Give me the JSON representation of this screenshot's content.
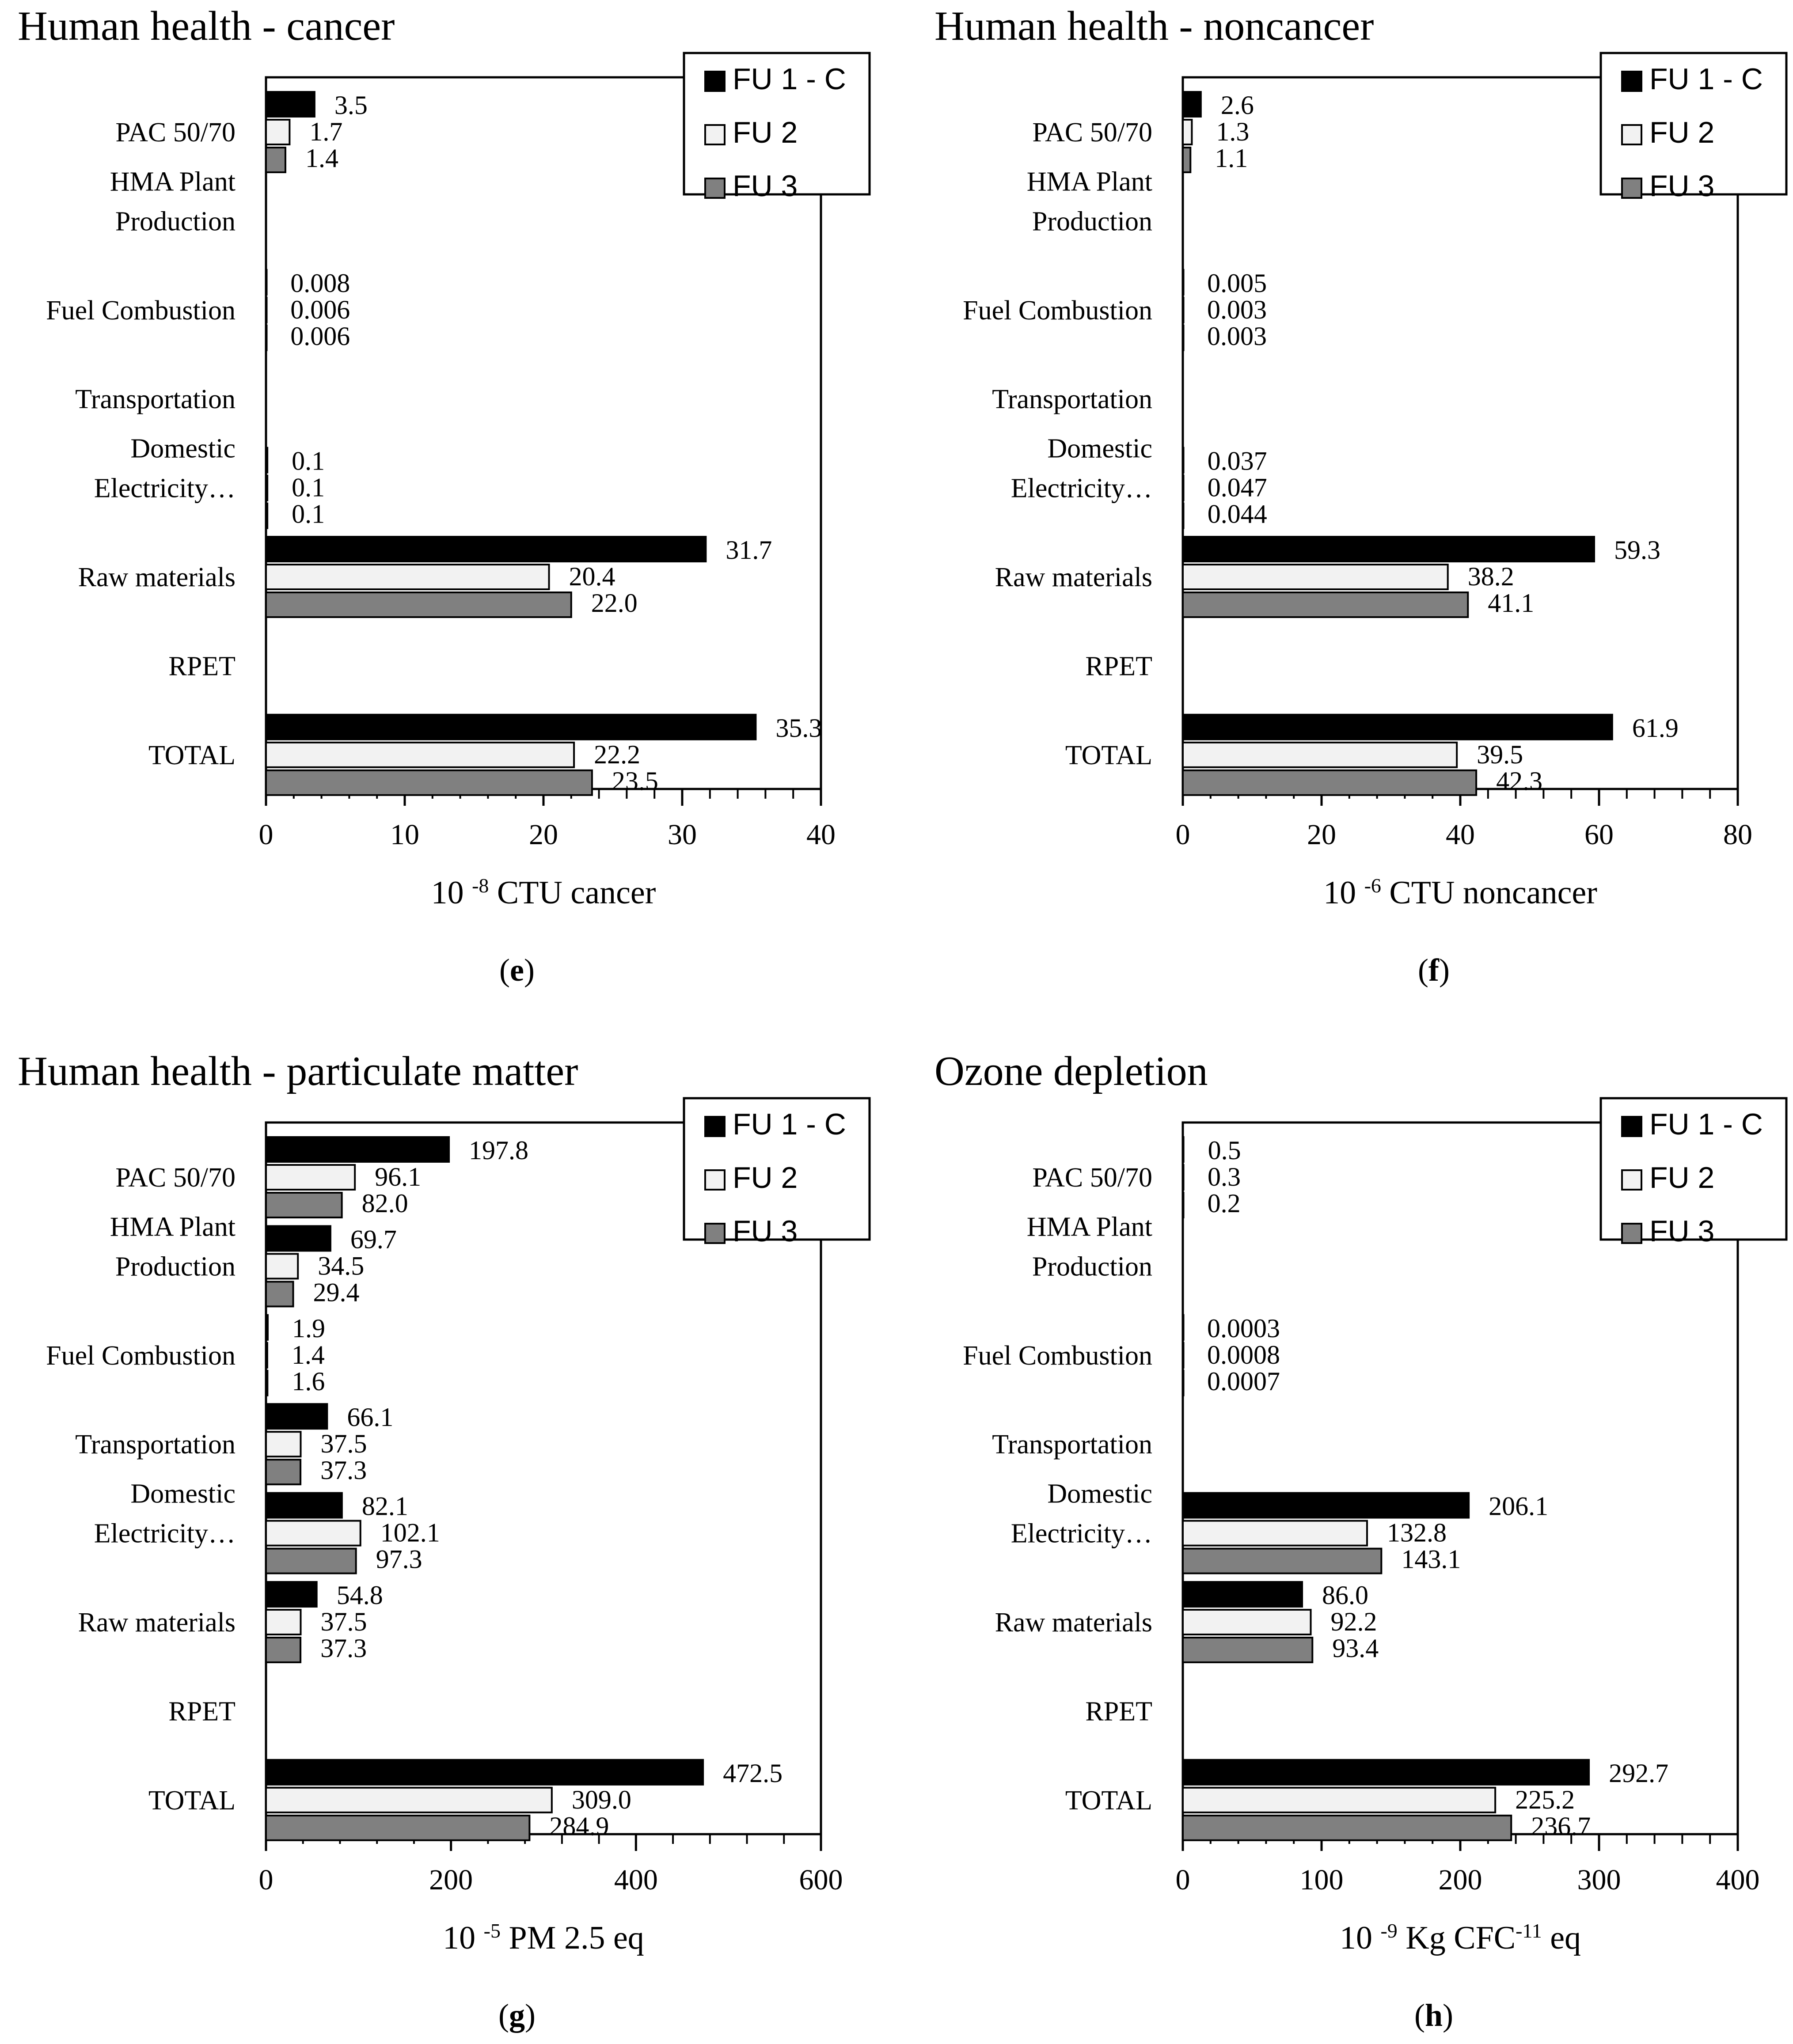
{
  "legend_labels": [
    "FU 1 - C",
    "FU 2",
    "FU 3"
  ],
  "series_colors": [
    "#000000",
    "#f2f2f2",
    "#808080"
  ],
  "chart_data": [
    {
      "type": "bar",
      "panel": "e",
      "panel_label": "e",
      "title": "Human health - cancer",
      "xlabel": {
        "prefix": "10 ",
        "sup": "-8",
        "suffix": " CTU cancer"
      },
      "xlim": [
        0,
        40
      ],
      "major_ticks": [
        0,
        10,
        20,
        30,
        40
      ],
      "minor_step": 2,
      "categories": [
        "PAC 50/70",
        "HMA Plant Production",
        "Fuel Combustion",
        "Transportation",
        "Domestic Electricity…",
        "Raw materials",
        "RPET",
        "TOTAL"
      ],
      "category_lines": [
        [
          "PAC 50/70"
        ],
        [
          "HMA Plant",
          "Production"
        ],
        [
          "Fuel Combustion"
        ],
        [
          "Transportation"
        ],
        [
          "Domestic",
          "Electricity…"
        ],
        [
          "Raw materials"
        ],
        [
          "RPET"
        ],
        [
          "TOTAL"
        ]
      ],
      "series": [
        {
          "name": "FU 1 - C",
          "values": [
            3.5,
            null,
            0.008,
            null,
            0.1,
            31.7,
            null,
            35.3
          ],
          "labels": [
            "3.5",
            "",
            "0.008",
            "",
            "0.1",
            "31.7",
            "",
            "35.3"
          ]
        },
        {
          "name": "FU 2",
          "values": [
            1.7,
            null,
            0.006,
            null,
            0.1,
            20.4,
            null,
            22.2
          ],
          "labels": [
            "1.7",
            "",
            "0.006",
            "",
            "0.1",
            "20.4",
            "",
            "22.2"
          ]
        },
        {
          "name": "FU 3",
          "values": [
            1.4,
            null,
            0.006,
            null,
            0.1,
            22.0,
            null,
            23.5
          ],
          "labels": [
            "1.4",
            "",
            "0.006",
            "",
            "0.1",
            "22.0",
            "",
            "23.5"
          ]
        }
      ],
      "legend": "top-right"
    },
    {
      "type": "bar",
      "panel": "f",
      "panel_label": "f",
      "title": "Human health - noncancer",
      "xlabel": {
        "prefix": "10 ",
        "sup": "-6",
        "suffix": " CTU noncancer"
      },
      "xlim": [
        0,
        80
      ],
      "major_ticks": [
        0,
        20,
        40,
        60,
        80
      ],
      "minor_step": 4,
      "categories": [
        "PAC 50/70",
        "HMA Plant Production",
        "Fuel Combustion",
        "Transportation",
        "Domestic Electricity…",
        "Raw materials",
        "RPET",
        "TOTAL"
      ],
      "category_lines": [
        [
          "PAC 50/70"
        ],
        [
          "HMA Plant",
          "Production"
        ],
        [
          "Fuel Combustion"
        ],
        [
          "Transportation"
        ],
        [
          "Domestic",
          "Electricity…"
        ],
        [
          "Raw materials"
        ],
        [
          "RPET"
        ],
        [
          "TOTAL"
        ]
      ],
      "series": [
        {
          "name": "FU 1 - C",
          "values": [
            2.6,
            null,
            0.005,
            null,
            0.037,
            59.3,
            null,
            61.9
          ],
          "labels": [
            "2.6",
            "",
            "0.005",
            "",
            "0.037",
            "59.3",
            "",
            "61.9"
          ]
        },
        {
          "name": "FU 2",
          "values": [
            1.3,
            null,
            0.003,
            null,
            0.047,
            38.2,
            null,
            39.5
          ],
          "labels": [
            "1.3",
            "",
            "0.003",
            "",
            "0.047",
            "38.2",
            "",
            "39.5"
          ]
        },
        {
          "name": "FU 3",
          "values": [
            1.1,
            null,
            0.003,
            null,
            0.044,
            41.1,
            null,
            42.3
          ],
          "labels": [
            "1.1",
            "",
            "0.003",
            "",
            "0.044",
            "41.1",
            "",
            "42.3"
          ]
        }
      ],
      "legend": "top-right"
    },
    {
      "type": "bar",
      "panel": "g",
      "panel_label": "g",
      "title": "Human health - particulate matter",
      "xlabel": {
        "prefix": "10 ",
        "sup": "-5",
        "suffix": " PM 2.5 eq"
      },
      "xlim": [
        0,
        600
      ],
      "major_ticks": [
        0,
        200,
        400,
        600
      ],
      "minor_step": 40,
      "categories": [
        "PAC 50/70",
        "HMA Plant Production",
        "Fuel Combustion",
        "Transportation",
        "Domestic Electricity…",
        "Raw materials",
        "RPET",
        "TOTAL"
      ],
      "category_lines": [
        [
          "PAC 50/70"
        ],
        [
          "HMA Plant",
          "Production"
        ],
        [
          "Fuel Combustion"
        ],
        [
          "Transportation"
        ],
        [
          "Domestic",
          "Electricity…"
        ],
        [
          "Raw materials"
        ],
        [
          "RPET"
        ],
        [
          "TOTAL"
        ]
      ],
      "series": [
        {
          "name": "FU 1 - C",
          "values": [
            197.8,
            69.7,
            1.9,
            66.1,
            82.1,
            54.8,
            null,
            472.5
          ],
          "labels": [
            "197.8",
            "69.7",
            "1.9",
            "66.1",
            "82.1",
            "54.8",
            "",
            "472.5"
          ]
        },
        {
          "name": "FU 2",
          "values": [
            96.1,
            34.5,
            1.4,
            37.5,
            102.1,
            37.5,
            null,
            309.0
          ],
          "labels": [
            "96.1",
            "34.5",
            "1.4",
            "37.5",
            "102.1",
            "37.5",
            "",
            "309.0"
          ]
        },
        {
          "name": "FU 3",
          "values": [
            82.0,
            29.4,
            1.6,
            37.3,
            97.3,
            37.3,
            null,
            284.9
          ],
          "labels": [
            "82.0",
            "29.4",
            "1.6",
            "37.3",
            "97.3",
            "37.3",
            "",
            "284.9"
          ]
        }
      ],
      "legend": "top-right"
    },
    {
      "type": "bar",
      "panel": "h",
      "panel_label": "h",
      "title": "Ozone depletion",
      "xlabel": {
        "prefix": "10 ",
        "sup": "-9",
        "suffix": " Kg CFC",
        "sup2": "-11",
        "suffix2": " eq"
      },
      "xlim": [
        0,
        400
      ],
      "major_ticks": [
        0,
        100,
        200,
        300,
        400
      ],
      "minor_step": 20,
      "categories": [
        "PAC 50/70",
        "HMA Plant Production",
        "Fuel Combustion",
        "Transportation",
        "Domestic Electricity…",
        "Raw materials",
        "RPET",
        "TOTAL"
      ],
      "category_lines": [
        [
          "PAC 50/70"
        ],
        [
          "HMA Plant",
          "Production"
        ],
        [
          "Fuel Combustion"
        ],
        [
          "Transportation"
        ],
        [
          "Domestic",
          "Electricity…"
        ],
        [
          "Raw materials"
        ],
        [
          "RPET"
        ],
        [
          "TOTAL"
        ]
      ],
      "series": [
        {
          "name": "FU 1 - C",
          "values": [
            0.5,
            null,
            0.0003,
            null,
            206.1,
            86.0,
            null,
            292.7
          ],
          "labels": [
            "0.5",
            "",
            "0.0003",
            "",
            "206.1",
            "86.0",
            "",
            "292.7"
          ]
        },
        {
          "name": "FU 2",
          "values": [
            0.3,
            null,
            0.0008,
            null,
            132.8,
            92.2,
            null,
            225.2
          ],
          "labels": [
            "0.3",
            "",
            "0.0008",
            "",
            "132.8",
            "92.2",
            "",
            "225.2"
          ]
        },
        {
          "name": "FU 3",
          "values": [
            0.2,
            null,
            0.0007,
            null,
            143.1,
            93.4,
            null,
            236.7
          ],
          "labels": [
            "0.2",
            "",
            "0.0007",
            "",
            "143.1",
            "93.4",
            "",
            "236.7"
          ]
        }
      ],
      "legend": "top-right"
    }
  ]
}
